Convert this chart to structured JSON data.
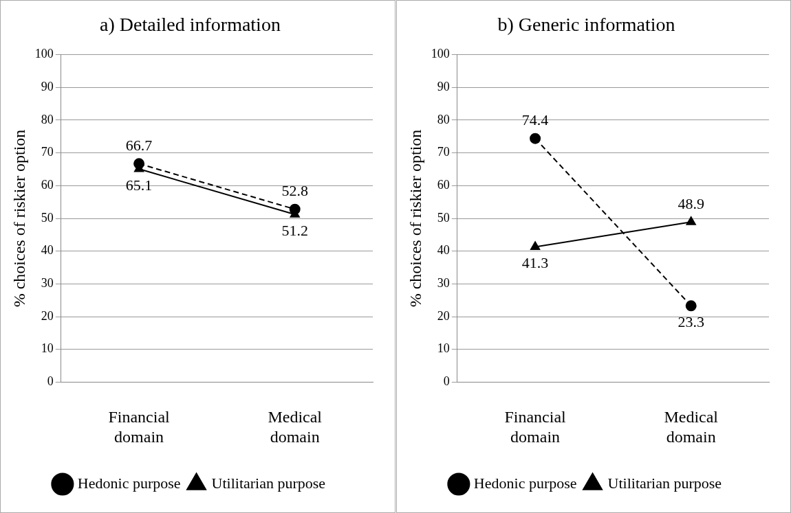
{
  "chart_data": [
    {
      "type": "line",
      "title": "a) Detailed information",
      "ylabel": "% choices of riskier option",
      "categories": [
        "Financial domain",
        "Medical domain"
      ],
      "ylim": [
        0,
        100
      ],
      "yticks": [
        0,
        10,
        20,
        30,
        40,
        50,
        60,
        70,
        80,
        90,
        100
      ],
      "grid": "y",
      "legend": "bottom",
      "data_labels": true,
      "series": [
        {
          "name": "Hedonic purpose",
          "color": "#000000",
          "values": [
            66.7,
            52.8
          ],
          "line_style": "dashed",
          "marker": "circle"
        },
        {
          "name": "Utilitarian purpose",
          "color": "#000000",
          "values": [
            65.1,
            51.2
          ],
          "line_style": "solid",
          "marker": "triangle"
        }
      ]
    },
    {
      "type": "line",
      "title": "b) Generic information",
      "ylabel": "% choices of riskier option",
      "categories": [
        "Financial domain",
        "Medical domain"
      ],
      "ylim": [
        0,
        100
      ],
      "yticks": [
        0,
        10,
        20,
        30,
        40,
        50,
        60,
        70,
        80,
        90,
        100
      ],
      "grid": "y",
      "legend": "bottom",
      "data_labels": true,
      "series": [
        {
          "name": "Hedonic purpose",
          "color": "#000000",
          "values": [
            74.4,
            23.3
          ],
          "line_style": "dashed",
          "marker": "circle"
        },
        {
          "name": "Utilitarian purpose",
          "color": "#000000",
          "values": [
            41.3,
            48.9
          ],
          "line_style": "solid",
          "marker": "triangle"
        }
      ]
    }
  ]
}
